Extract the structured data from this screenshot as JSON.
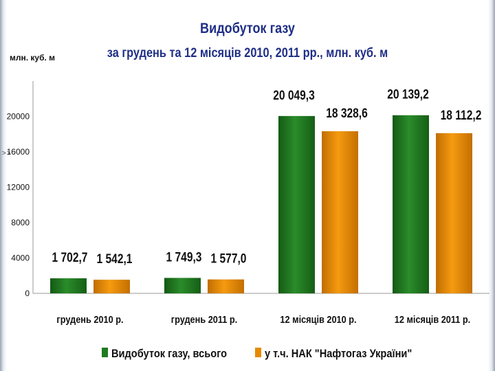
{
  "chart_data": {
    "type": "bar",
    "title": "Видобуток газу",
    "subtitle": "за грудень та 12 місяців 2010, 2011 рр.,  млн. куб. м",
    "ylabel": "млн. куб. м",
    "xlabel": "",
    "ylim": [
      0,
      24000
    ],
    "yticks": [
      0,
      4000,
      8000,
      12000,
      16000,
      20000
    ],
    "yticks_labels": [
      "0",
      "4000",
      "8000",
      "12000",
      "16000",
      "20000"
    ],
    "grid": false,
    "legend_position": "bottom",
    "categories": [
      "грудень 2010 р.",
      "грудень 2011 р.",
      "12 місяців 2010 р.",
      "12 місяців 2011 р."
    ],
    "series": [
      {
        "name": "Видобуток газу, всього",
        "color": "#1f7a1f",
        "values": [
          1702.7,
          1749.3,
          20049.3,
          20139.2
        ],
        "labels": [
          "1 702,7",
          "1 749,3",
          "20 049,3",
          "20 139,2"
        ]
      },
      {
        "name": "у т.ч. НАК \"Нафтогаз України\"",
        "color": "#e68a00",
        "values": [
          1542.1,
          1577.0,
          18328.6,
          18112.2
        ],
        "labels": [
          "1 542,1",
          "1 577,0",
          "18 328,6",
          "18 112,2"
        ]
      }
    ]
  },
  "page": {
    "side_marker": ">>"
  }
}
